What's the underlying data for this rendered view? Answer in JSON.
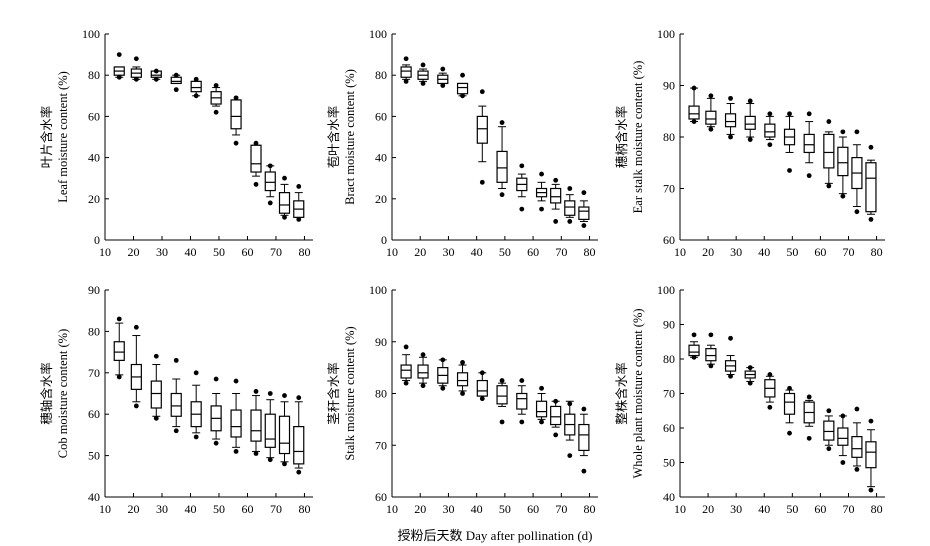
{
  "figure": {
    "x_axis_label": "授粉后天数 Day after pollination (d)"
  },
  "chart_data": [
    {
      "type": "box",
      "ylabel_cn": "叶片含水率",
      "ylabel_en": "Leaf moisture content (%)",
      "x_ticks": [
        10,
        20,
        30,
        40,
        50,
        60,
        70,
        80
      ],
      "y_ticks": [
        0,
        20,
        40,
        60,
        80,
        100
      ],
      "xlim": [
        10,
        83
      ],
      "ylim": [
        0,
        100
      ],
      "boxes": [
        {
          "x": 15,
          "wlo": 79,
          "q1": 80,
          "med": 82,
          "q3": 84,
          "whi": 84,
          "out_hi": 90,
          "out_lo": 79
        },
        {
          "x": 21,
          "wlo": 78,
          "q1": 79,
          "med": 81,
          "q3": 83,
          "whi": 84,
          "out_hi": 88,
          "out_lo": 78
        },
        {
          "x": 28,
          "wlo": 78,
          "q1": 79,
          "med": 80,
          "q3": 82,
          "whi": 82,
          "out_hi": 82,
          "out_lo": 78
        },
        {
          "x": 35,
          "wlo": 76,
          "q1": 76,
          "med": 77,
          "q3": 79,
          "whi": 80,
          "out_hi": 80,
          "out_lo": 73
        },
        {
          "x": 42,
          "wlo": 70,
          "q1": 72,
          "med": 74,
          "q3": 77,
          "whi": 77,
          "out_hi": 78,
          "out_lo": 70
        },
        {
          "x": 49,
          "wlo": 65,
          "q1": 66,
          "med": 69,
          "q3": 72,
          "whi": 74,
          "out_hi": 75,
          "out_lo": 62
        },
        {
          "x": 56,
          "wlo": 51,
          "q1": 54,
          "med": 60,
          "q3": 68,
          "whi": 68,
          "out_hi": 69,
          "out_lo": 47
        },
        {
          "x": 63,
          "wlo": 31,
          "q1": 33,
          "med": 37,
          "q3": 46,
          "whi": 46,
          "out_hi": 47,
          "out_lo": 27
        },
        {
          "x": 68,
          "wlo": 21,
          "q1": 24,
          "med": 28,
          "q3": 33,
          "whi": 36,
          "out_hi": 36,
          "out_lo": 18
        },
        {
          "x": 73,
          "wlo": 12,
          "q1": 13,
          "med": 17,
          "q3": 23,
          "whi": 27,
          "out_hi": 30,
          "out_lo": 11
        },
        {
          "x": 78,
          "wlo": 11,
          "q1": 11,
          "med": 15,
          "q3": 19,
          "whi": 23,
          "out_hi": 26,
          "out_lo": 10
        }
      ]
    },
    {
      "type": "box",
      "ylabel_cn": "苞叶含水率",
      "ylabel_en": "Bract moisture content (%)",
      "x_ticks": [
        10,
        20,
        30,
        40,
        50,
        60,
        70,
        80
      ],
      "y_ticks": [
        0,
        20,
        40,
        60,
        80,
        100
      ],
      "xlim": [
        10,
        83
      ],
      "ylim": [
        0,
        100
      ],
      "boxes": [
        {
          "x": 15,
          "wlo": 78,
          "q1": 79,
          "med": 82,
          "q3": 84,
          "whi": 85,
          "out_hi": 88,
          "out_lo": 77
        },
        {
          "x": 21,
          "wlo": 77,
          "q1": 78,
          "med": 80,
          "q3": 82,
          "whi": 83,
          "out_hi": 85,
          "out_lo": 76
        },
        {
          "x": 28,
          "wlo": 76,
          "q1": 76,
          "med": 78,
          "q3": 80,
          "whi": 81,
          "out_hi": 83,
          "out_lo": 75
        },
        {
          "x": 35,
          "wlo": 70,
          "q1": 71,
          "med": 74,
          "q3": 76,
          "whi": 76,
          "out_hi": 80,
          "out_lo": 70
        },
        {
          "x": 42,
          "wlo": 38,
          "q1": 47,
          "med": 54,
          "q3": 60,
          "whi": 65,
          "out_hi": 72,
          "out_lo": 28
        },
        {
          "x": 49,
          "wlo": 25,
          "q1": 28,
          "med": 35,
          "q3": 43,
          "whi": 55,
          "out_hi": 57,
          "out_lo": 22
        },
        {
          "x": 56,
          "wlo": 21,
          "q1": 24,
          "med": 27,
          "q3": 30,
          "whi": 32,
          "out_hi": 36,
          "out_lo": 15
        },
        {
          "x": 63,
          "wlo": 19,
          "q1": 21,
          "med": 23,
          "q3": 25,
          "whi": 28,
          "out_hi": 32,
          "out_lo": 15
        },
        {
          "x": 68,
          "wlo": 15,
          "q1": 18,
          "med": 21,
          "q3": 25,
          "whi": 27,
          "out_hi": 29,
          "out_lo": 9
        },
        {
          "x": 73,
          "wlo": 11,
          "q1": 12,
          "med": 16,
          "q3": 19,
          "whi": 22,
          "out_hi": 25,
          "out_lo": 9
        },
        {
          "x": 78,
          "wlo": 9,
          "q1": 10,
          "med": 14,
          "q3": 16,
          "whi": 19,
          "out_hi": 23,
          "out_lo": 7
        }
      ]
    },
    {
      "type": "box",
      "ylabel_cn": "穗柄含水率",
      "ylabel_en": "Ear stalk moisture content (%)",
      "x_ticks": [
        10,
        20,
        30,
        40,
        50,
        60,
        70,
        80
      ],
      "y_ticks": [
        60,
        70,
        80,
        90,
        100
      ],
      "xlim": [
        10,
        83
      ],
      "ylim": [
        60,
        100
      ],
      "boxes": [
        {
          "x": 15,
          "wlo": 83,
          "q1": 83.5,
          "med": 84.5,
          "q3": 86,
          "whi": 89.5,
          "out_hi": 89.5,
          "out_lo": 83
        },
        {
          "x": 21,
          "wlo": 82,
          "q1": 82.5,
          "med": 83.5,
          "q3": 85,
          "whi": 87.5,
          "out_hi": 88,
          "out_lo": 81.5
        },
        {
          "x": 28,
          "wlo": 80.5,
          "q1": 82,
          "med": 83,
          "q3": 84.5,
          "whi": 86.5,
          "out_hi": 87.5,
          "out_lo": 80
        },
        {
          "x": 35,
          "wlo": 80,
          "q1": 81.5,
          "med": 82.5,
          "q3": 84,
          "whi": 86.5,
          "out_hi": 87,
          "out_lo": 79.5
        },
        {
          "x": 42,
          "wlo": 79.5,
          "q1": 80,
          "med": 81,
          "q3": 82.5,
          "whi": 84,
          "out_hi": 84.5,
          "out_lo": 78.5
        },
        {
          "x": 49,
          "wlo": 77,
          "q1": 78.5,
          "med": 80,
          "q3": 81.5,
          "whi": 84,
          "out_hi": 84.5,
          "out_lo": 73.5
        },
        {
          "x": 56,
          "wlo": 75,
          "q1": 77,
          "med": 78.5,
          "q3": 80.5,
          "whi": 83,
          "out_hi": 84.5,
          "out_lo": 72.5
        },
        {
          "x": 63,
          "wlo": 71,
          "q1": 74,
          "med": 77,
          "q3": 80.5,
          "whi": 81,
          "out_hi": 83,
          "out_lo": 70.5
        },
        {
          "x": 68,
          "wlo": 69,
          "q1": 72.5,
          "med": 75,
          "q3": 78,
          "whi": 80,
          "out_hi": 81,
          "out_lo": 68.5
        },
        {
          "x": 73,
          "wlo": 66.5,
          "q1": 70,
          "med": 73,
          "q3": 76,
          "whi": 78.5,
          "out_hi": 81,
          "out_lo": 65.5
        },
        {
          "x": 78,
          "wlo": 65,
          "q1": 65.5,
          "med": 72,
          "q3": 75,
          "whi": 75.5,
          "out_hi": 78,
          "out_lo": 64
        }
      ]
    },
    {
      "type": "box",
      "ylabel_cn": "穗轴含水率",
      "ylabel_en": "Cob moisture content (%)",
      "x_ticks": [
        10,
        20,
        30,
        40,
        50,
        60,
        70,
        80
      ],
      "y_ticks": [
        40,
        50,
        60,
        70,
        80,
        90
      ],
      "xlim": [
        10,
        83
      ],
      "ylim": [
        40,
        90
      ],
      "boxes": [
        {
          "x": 15,
          "wlo": 69.5,
          "q1": 73,
          "med": 75,
          "q3": 77.5,
          "whi": 82,
          "out_hi": 83,
          "out_lo": 69
        },
        {
          "x": 21,
          "wlo": 63,
          "q1": 66,
          "med": 69,
          "q3": 72,
          "whi": 79,
          "out_hi": 81,
          "out_lo": 62
        },
        {
          "x": 28,
          "wlo": 59.5,
          "q1": 61.5,
          "med": 65,
          "q3": 68,
          "whi": 72,
          "out_hi": 74,
          "out_lo": 59
        },
        {
          "x": 35,
          "wlo": 57,
          "q1": 59.5,
          "med": 62,
          "q3": 65,
          "whi": 68.5,
          "out_hi": 73,
          "out_lo": 56
        },
        {
          "x": 42,
          "wlo": 55.5,
          "q1": 57,
          "med": 60,
          "q3": 63,
          "whi": 67,
          "out_hi": 70,
          "out_lo": 54.5
        },
        {
          "x": 49,
          "wlo": 54,
          "q1": 56,
          "med": 59,
          "q3": 62,
          "whi": 65,
          "out_hi": 68.5,
          "out_lo": 53
        },
        {
          "x": 56,
          "wlo": 52,
          "q1": 54.5,
          "med": 57,
          "q3": 61,
          "whi": 65,
          "out_hi": 68,
          "out_lo": 51
        },
        {
          "x": 63,
          "wlo": 51,
          "q1": 53.5,
          "med": 56,
          "q3": 61,
          "whi": 64.5,
          "out_hi": 65.5,
          "out_lo": 50.5
        },
        {
          "x": 68,
          "wlo": 49.5,
          "q1": 52,
          "med": 54,
          "q3": 60,
          "whi": 63.5,
          "out_hi": 65,
          "out_lo": 49
        },
        {
          "x": 73,
          "wlo": 48.5,
          "q1": 50.5,
          "med": 53,
          "q3": 59.5,
          "whi": 63,
          "out_hi": 64.5,
          "out_lo": 48
        },
        {
          "x": 78,
          "wlo": 47,
          "q1": 48,
          "med": 51,
          "q3": 57,
          "whi": 63,
          "out_hi": 64,
          "out_lo": 46
        }
      ]
    },
    {
      "type": "box",
      "ylabel_cn": "茎秆含水率",
      "ylabel_en": "Stalk moisture content (%)",
      "x_ticks": [
        10,
        20,
        30,
        40,
        50,
        60,
        70,
        80
      ],
      "y_ticks": [
        60,
        70,
        80,
        90,
        100
      ],
      "xlim": [
        10,
        83
      ],
      "ylim": [
        60,
        100
      ],
      "boxes": [
        {
          "x": 15,
          "wlo": 82.5,
          "q1": 83,
          "med": 84.5,
          "q3": 85.5,
          "whi": 87.5,
          "out_hi": 89,
          "out_lo": 82
        },
        {
          "x": 21,
          "wlo": 82,
          "q1": 83,
          "med": 84,
          "q3": 85.5,
          "whi": 87,
          "out_hi": 87.5,
          "out_lo": 81.5
        },
        {
          "x": 28,
          "wlo": 81.5,
          "q1": 82,
          "med": 83.5,
          "q3": 85,
          "whi": 86.5,
          "out_hi": 86.5,
          "out_lo": 81
        },
        {
          "x": 35,
          "wlo": 80.5,
          "q1": 81.5,
          "med": 82.5,
          "q3": 84,
          "whi": 85.5,
          "out_hi": 86,
          "out_lo": 80
        },
        {
          "x": 42,
          "wlo": 79.5,
          "q1": 79.5,
          "med": 80.5,
          "q3": 82.5,
          "whi": 84,
          "out_hi": 84,
          "out_lo": 79
        },
        {
          "x": 49,
          "wlo": 77.5,
          "q1": 78,
          "med": 79.5,
          "q3": 81.5,
          "whi": 82,
          "out_hi": 82.5,
          "out_lo": 74.5
        },
        {
          "x": 56,
          "wlo": 76,
          "q1": 77,
          "med": 79,
          "q3": 80,
          "whi": 81.5,
          "out_hi": 82.5,
          "out_lo": 74.5
        },
        {
          "x": 63,
          "wlo": 75,
          "q1": 75.5,
          "med": 76.5,
          "q3": 78.5,
          "whi": 80,
          "out_hi": 81,
          "out_lo": 74.5
        },
        {
          "x": 68,
          "wlo": 73.5,
          "q1": 74,
          "med": 75.5,
          "q3": 77.5,
          "whi": 78.5,
          "out_hi": 78.5,
          "out_lo": 72
        },
        {
          "x": 73,
          "wlo": 71,
          "q1": 72,
          "med": 74,
          "q3": 76,
          "whi": 78.5,
          "out_hi": 78,
          "out_lo": 68
        },
        {
          "x": 78,
          "wlo": 68,
          "q1": 69,
          "med": 72,
          "q3": 74,
          "whi": 76,
          "out_hi": 77,
          "out_lo": 65
        }
      ]
    },
    {
      "type": "box",
      "ylabel_cn": "整株含水率",
      "ylabel_en": "Whole plant moisture content (%)",
      "x_ticks": [
        10,
        20,
        30,
        40,
        50,
        60,
        70,
        80
      ],
      "y_ticks": [
        40,
        50,
        60,
        70,
        80,
        90,
        100
      ],
      "xlim": [
        10,
        83
      ],
      "ylim": [
        40,
        100
      ],
      "boxes": [
        {
          "x": 15,
          "wlo": 80.5,
          "q1": 81,
          "med": 82,
          "q3": 84,
          "whi": 85,
          "out_hi": 87,
          "out_lo": 80.5
        },
        {
          "x": 21,
          "wlo": 78.5,
          "q1": 79.5,
          "med": 81,
          "q3": 83,
          "whi": 84,
          "out_hi": 87,
          "out_lo": 78
        },
        {
          "x": 28,
          "wlo": 75.5,
          "q1": 76.5,
          "med": 78,
          "q3": 79.5,
          "whi": 81,
          "out_hi": 86,
          "out_lo": 75
        },
        {
          "x": 35,
          "wlo": 73.5,
          "q1": 74.5,
          "med": 75.5,
          "q3": 76.5,
          "whi": 77.5,
          "out_hi": 77.5,
          "out_lo": 73
        },
        {
          "x": 42,
          "wlo": 67.5,
          "q1": 69,
          "med": 71.5,
          "q3": 74,
          "whi": 75,
          "out_hi": 75.5,
          "out_lo": 66
        },
        {
          "x": 49,
          "wlo": 61.5,
          "q1": 64,
          "med": 67.5,
          "q3": 70,
          "whi": 71,
          "out_hi": 71.5,
          "out_lo": 58.5
        },
        {
          "x": 56,
          "wlo": 60.5,
          "q1": 61.5,
          "med": 64.5,
          "q3": 67.5,
          "whi": 68,
          "out_hi": 69,
          "out_lo": 57
        },
        {
          "x": 63,
          "wlo": 55,
          "q1": 56.5,
          "med": 59,
          "q3": 62,
          "whi": 63.5,
          "out_hi": 65,
          "out_lo": 54
        },
        {
          "x": 68,
          "wlo": 52,
          "q1": 55,
          "med": 57,
          "q3": 60,
          "whi": 63.5,
          "out_hi": 63.5,
          "out_lo": 50
        },
        {
          "x": 73,
          "wlo": 49,
          "q1": 51.5,
          "med": 54,
          "q3": 57.5,
          "whi": 61.5,
          "out_hi": 65.5,
          "out_lo": 48
        },
        {
          "x": 78,
          "wlo": 43,
          "q1": 48.5,
          "med": 53,
          "q3": 56,
          "whi": 59.5,
          "out_hi": 62,
          "out_lo": 42
        }
      ]
    }
  ]
}
